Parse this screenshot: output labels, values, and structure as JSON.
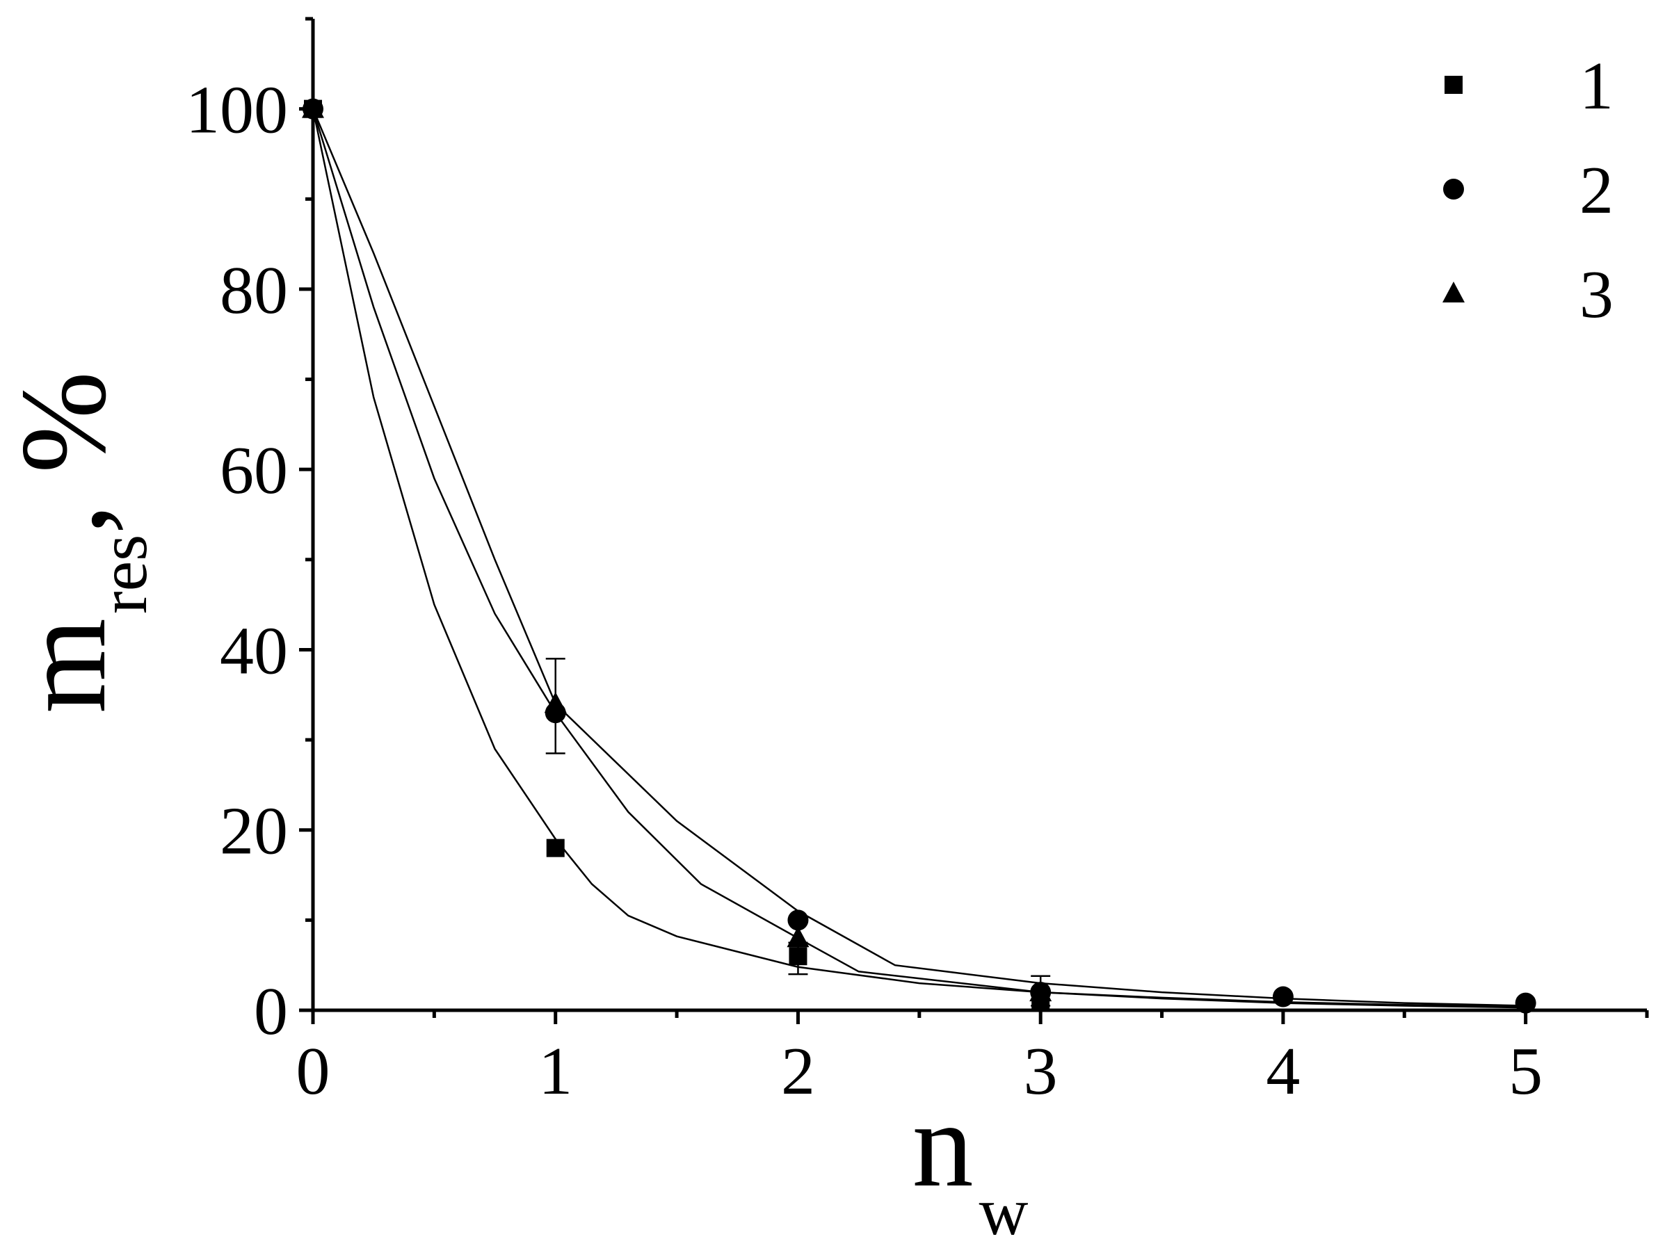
{
  "chart_data": {
    "type": "scatter",
    "xlabel_main": "n",
    "xlabel_sub": "w",
    "ylabel_main": "m",
    "ylabel_sub": "res",
    "ylabel_unit": ", %",
    "xlim": [
      0,
      5.5
    ],
    "ylim": [
      0,
      110
    ],
    "x_ticks": [
      0,
      1,
      2,
      3,
      4,
      5
    ],
    "x_tick_labels": [
      "0",
      "1",
      "2",
      "3",
      "4",
      "5"
    ],
    "x_minor_ticks": [
      0.5,
      1.5,
      2.5,
      3.5,
      4.5,
      5.5
    ],
    "y_ticks": [
      0,
      20,
      40,
      60,
      80,
      100
    ],
    "y_tick_labels": [
      "0",
      "20",
      "40",
      "60",
      "80",
      "100"
    ],
    "y_minor_ticks": [
      10,
      30,
      50,
      70,
      90,
      110
    ],
    "grid": false,
    "legend_position": "top-right",
    "series": [
      {
        "name": "1",
        "marker": "square",
        "x": [
          0,
          1,
          2,
          3
        ],
        "y": [
          100,
          18,
          6,
          1
        ],
        "fit_x": [
          0,
          0.25,
          0.5,
          0.75,
          1.0,
          1.15,
          1.3,
          1.5,
          2.0,
          2.5,
          3.0,
          3.5,
          4.0,
          4.5,
          5.0
        ],
        "fit_y": [
          100,
          68,
          45,
          29,
          19,
          14,
          10.5,
          8.2,
          4.8,
          3.0,
          2.0,
          1.4,
          0.9,
          0.6,
          0.4
        ]
      },
      {
        "name": "2",
        "marker": "circle",
        "x": [
          0,
          1,
          2,
          3,
          4,
          5
        ],
        "y": [
          100,
          33,
          10,
          2,
          1.5,
          0.8
        ],
        "fit_x": [
          0,
          0.25,
          0.5,
          0.75,
          1.0,
          1.5,
          2.0,
          2.4,
          3.0,
          3.5,
          4.0,
          4.5,
          5.0
        ],
        "fit_y": [
          100,
          84,
          67,
          50,
          34,
          21,
          11,
          5,
          3.0,
          2.0,
          1.3,
          0.8,
          0.5
        ]
      },
      {
        "name": "3",
        "marker": "triangle",
        "x": [
          0,
          1,
          2,
          3
        ],
        "y": [
          100,
          34,
          8,
          2
        ],
        "fit_x": [
          0,
          0.25,
          0.5,
          0.75,
          1.0,
          1.3,
          1.6,
          2.0,
          2.25,
          3.0,
          3.5,
          4.0,
          4.5,
          5.0
        ],
        "fit_y": [
          100,
          78,
          59,
          44,
          33,
          22,
          14,
          8,
          4.3,
          2.0,
          1.3,
          0.8,
          0.5,
          0.3
        ]
      }
    ],
    "error_bars": [
      {
        "x": 1,
        "low": 28.5,
        "high": 39
      },
      {
        "x": 2,
        "low": 4,
        "high": 7.5
      },
      {
        "x": 3,
        "low": 0.5,
        "high": 3.8
      }
    ]
  }
}
